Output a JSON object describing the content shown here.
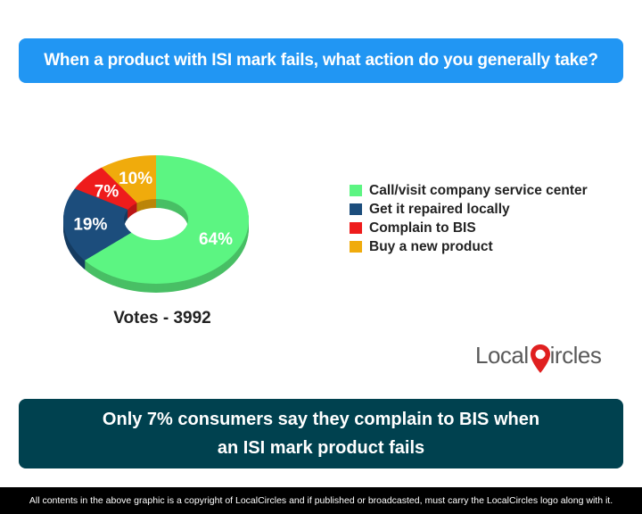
{
  "header": {
    "question": "When a product with ISI mark fails, what action do you generally take?"
  },
  "chart_data": {
    "type": "pie",
    "donut": true,
    "categories": [
      "Call/visit company service center",
      "Get it repaired locally",
      "Complain to BIS",
      "Buy a new product"
    ],
    "values": [
      64,
      19,
      7,
      10
    ],
    "labels": [
      "64%",
      "19%",
      "7%",
      "10%"
    ],
    "colors": [
      "#5cf582",
      "#1c4d7c",
      "#ee1c1c",
      "#f0ab0c"
    ],
    "label_colors": [
      "#ffffff",
      "#ffffff",
      "#ffffff",
      "#ffffff"
    ],
    "legend_position": "right",
    "title": ""
  },
  "votes": "Votes - 3992",
  "logo": {
    "text_before": "Local",
    "text_after": "ircles",
    "pin_color": "#e02020"
  },
  "conclusion": "Only 7% consumers say they complain to BIS when an ISI mark product fails",
  "footer": "All contents in the above graphic is a copyright of LocalCircles and if published or broadcasted, must carry the LocalCircles logo along with it."
}
